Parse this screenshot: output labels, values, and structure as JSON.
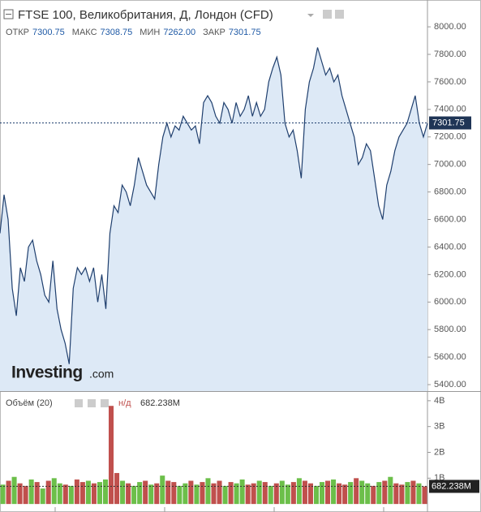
{
  "chart_data": [
    {
      "type": "area",
      "title": "FTSE 100, Великобритания, Д, Лондон (CFD)",
      "stats": [
        {
          "label": "ОТКР",
          "value": "7300.75"
        },
        {
          "label": "МАКС",
          "value": "7308.75"
        },
        {
          "label": "МИН",
          "value": "7262.00"
        },
        {
          "label": "ЗАКР",
          "value": "7301.75"
        }
      ],
      "logo": {
        "name": "Investing",
        "suffix": ".com"
      },
      "color": "#1f3f6e",
      "fill": "#dde9f6",
      "values": [
        6500,
        6780,
        6600,
        6100,
        5900,
        6250,
        6150,
        6400,
        6450,
        6300,
        6200,
        6050,
        6000,
        6300,
        5950,
        5800,
        5700,
        5550,
        6100,
        6250,
        6200,
        6250,
        6150,
        6250,
        6000,
        6200,
        5950,
        6500,
        6700,
        6650,
        6850,
        6800,
        6700,
        6850,
        7050,
        6950,
        6850,
        6800,
        6750,
        7000,
        7200,
        7300,
        7200,
        7280,
        7250,
        7350,
        7300,
        7250,
        7280,
        7150,
        7450,
        7500,
        7450,
        7350,
        7300,
        7450,
        7400,
        7300,
        7450,
        7350,
        7400,
        7500,
        7350,
        7450,
        7350,
        7400,
        7600,
        7700,
        7780,
        7650,
        7300,
        7200,
        7250,
        7100,
        6900,
        7400,
        7600,
        7700,
        7850,
        7750,
        7650,
        7700,
        7600,
        7650,
        7500,
        7400,
        7300,
        7200,
        7000,
        7050,
        7150,
        7100,
        6900,
        6700,
        6600,
        6850,
        6950,
        7100,
        7200,
        7250,
        7300,
        7400,
        7500,
        7300,
        7200,
        7300
      ],
      "close": 7301.75,
      "close_label": "7301.75",
      "ylim": [
        5353,
        8195
      ],
      "yticks": [
        {
          "value": 5400,
          "label": "5400.00"
        },
        {
          "value": 5600,
          "label": "5600.00"
        },
        {
          "value": 5800,
          "label": "5800.00"
        },
        {
          "value": 6000,
          "label": "6000.00"
        },
        {
          "value": 6200,
          "label": "6200.00"
        },
        {
          "value": 6400,
          "label": "6400.00"
        },
        {
          "value": 6600,
          "label": "6600.00"
        },
        {
          "value": 6800,
          "label": "6800.00"
        },
        {
          "value": 7000,
          "label": "7000.00"
        },
        {
          "value": 7200,
          "label": "7200.00"
        },
        {
          "value": 7400,
          "label": "7400.00"
        },
        {
          "value": 7600,
          "label": "7600.00"
        },
        {
          "value": 7800,
          "label": "7800.00"
        },
        {
          "value": 8000,
          "label": "8000.00"
        }
      ]
    },
    {
      "type": "volume",
      "title": "Объём (20)",
      "na": "н/д",
      "last": 0.682238,
      "last_label": "682.238M",
      "values": [
        0.75,
        0.9,
        1.05,
        0.8,
        0.7,
        0.95,
        0.85,
        0.6,
        0.9,
        1.0,
        0.8,
        0.75,
        0.7,
        0.95,
        0.85,
        0.9,
        0.8,
        0.85,
        0.95,
        3.8,
        1.2,
        0.9,
        0.8,
        0.7,
        0.85,
        0.9,
        0.75,
        0.8,
        1.1,
        0.9,
        0.85,
        0.7,
        0.8,
        0.9,
        0.75,
        0.85,
        1.0,
        0.8,
        0.9,
        0.7,
        0.85,
        0.8,
        0.95,
        0.75,
        0.8,
        0.9,
        0.85,
        0.7,
        0.8,
        0.9,
        0.75,
        0.85,
        1.0,
        0.9,
        0.8,
        0.7,
        0.85,
        0.9,
        0.95,
        0.8,
        0.75,
        0.85,
        1.0,
        0.9,
        0.8,
        0.7,
        0.85,
        0.9,
        1.05,
        0.8,
        0.75,
        0.85,
        0.9,
        0.8,
        0.68
      ],
      "colors": [
        "#6cbf4a",
        "#c0504d",
        "#6cbf4a",
        "#c0504d",
        "#c0504d",
        "#6cbf4a",
        "#c0504d",
        "#6cbf4a",
        "#c0504d",
        "#6cbf4a",
        "#6cbf4a",
        "#c0504d",
        "#6cbf4a",
        "#c0504d",
        "#c0504d",
        "#6cbf4a",
        "#c0504d",
        "#6cbf4a",
        "#6cbf4a",
        "#c0504d",
        "#c0504d",
        "#6cbf4a",
        "#c0504d",
        "#6cbf4a",
        "#6cbf4a",
        "#c0504d",
        "#6cbf4a",
        "#c0504d",
        "#6cbf4a",
        "#c0504d",
        "#c0504d",
        "#6cbf4a",
        "#6cbf4a",
        "#c0504d",
        "#6cbf4a",
        "#c0504d",
        "#6cbf4a",
        "#c0504d",
        "#c0504d",
        "#6cbf4a",
        "#c0504d",
        "#6cbf4a",
        "#6cbf4a",
        "#c0504d",
        "#c0504d",
        "#6cbf4a",
        "#c0504d",
        "#6cbf4a",
        "#c0504d",
        "#6cbf4a",
        "#6cbf4a",
        "#c0504d",
        "#6cbf4a",
        "#c0504d",
        "#c0504d",
        "#6cbf4a",
        "#6cbf4a",
        "#c0504d",
        "#6cbf4a",
        "#c0504d",
        "#c0504d",
        "#6cbf4a",
        "#c0504d",
        "#6cbf4a",
        "#6cbf4a",
        "#c0504d",
        "#6cbf4a",
        "#c0504d",
        "#6cbf4a",
        "#c0504d",
        "#c0504d",
        "#6cbf4a",
        "#c0504d",
        "#6cbf4a",
        "#c0504d"
      ],
      "ylim": [
        -0.31,
        4.31
      ],
      "yticks": [
        {
          "value": 1,
          "label": "1B"
        },
        {
          "value": 2,
          "label": "2B"
        },
        {
          "value": 3,
          "label": "3B"
        },
        {
          "value": 4,
          "label": "4B"
        }
      ]
    }
  ]
}
